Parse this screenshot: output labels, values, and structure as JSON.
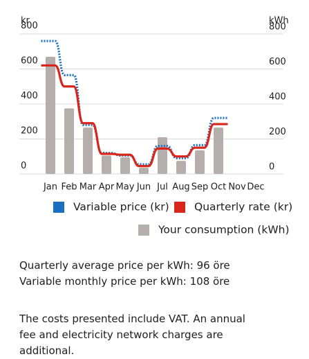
{
  "chart_data": {
    "type": "combo",
    "y_label": "kr",
    "y2_label": "kWh",
    "categories": [
      "Jan",
      "Feb",
      "Mar",
      "Apr",
      "May",
      "Jun",
      "Jul",
      "Aug",
      "Sep",
      "Oct",
      "Nov",
      "Dec"
    ],
    "series": [
      {
        "name": "Variable price (kr)",
        "type": "line",
        "dashed": true,
        "color": "#1a6fc0",
        "values": [
          760,
          565,
          280,
          120,
          105,
          55,
          160,
          90,
          165,
          320,
          null,
          null
        ]
      },
      {
        "name": "Quarterly rate (kr)",
        "type": "line",
        "dashed": false,
        "color": "#d9261c",
        "values": [
          620,
          500,
          290,
          115,
          110,
          45,
          145,
          100,
          150,
          285,
          null,
          null
        ]
      },
      {
        "name": "Your consumption (kWh)",
        "type": "bar",
        "axis": "y2",
        "color": "#b6aeab",
        "values": [
          670,
          375,
          265,
          105,
          95,
          35,
          210,
          75,
          135,
          265,
          null,
          null
        ]
      }
    ],
    "ylim": [
      0,
      800
    ],
    "yticks": [
      0,
      200,
      400,
      600,
      800
    ],
    "y2lim": [
      0,
      800
    ],
    "y2ticks": [
      0,
      200,
      400,
      600,
      800
    ],
    "grid": true
  },
  "info": [
    "Quarterly average price per kWh: 96 öre",
    "Variable monthly price per kWh: 108 öre"
  ],
  "disclaimer": "The costs presented include VAT. An annual fee and electricity network charges are additional."
}
